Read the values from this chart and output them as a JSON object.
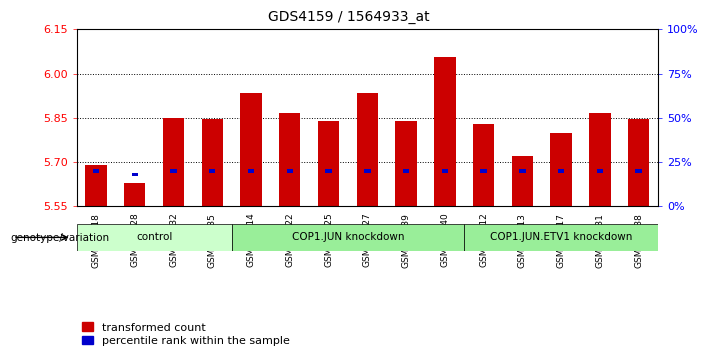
{
  "title": "GDS4159 / 1564933_at",
  "samples": [
    "GSM689418",
    "GSM689428",
    "GSM689432",
    "GSM689435",
    "GSM689414",
    "GSM689422",
    "GSM689425",
    "GSM689427",
    "GSM689439",
    "GSM689440",
    "GSM689412",
    "GSM689413",
    "GSM689417",
    "GSM689431",
    "GSM689438"
  ],
  "transformed_counts": [
    5.69,
    5.63,
    5.85,
    5.845,
    5.935,
    5.865,
    5.84,
    5.935,
    5.84,
    6.055,
    5.83,
    5.72,
    5.8,
    5.865,
    5.845
  ],
  "percentile_ranks_pct": [
    20,
    18,
    20,
    20,
    20,
    20,
    20,
    20,
    20,
    20,
    20,
    20,
    20,
    20,
    20
  ],
  "bar_color": "#cc0000",
  "blue_color": "#0000cc",
  "ylim_left": [
    5.55,
    6.15
  ],
  "ylim_right": [
    0,
    100
  ],
  "yticks_left": [
    5.55,
    5.7,
    5.85,
    6.0,
    6.15
  ],
  "yticks_right": [
    0,
    25,
    50,
    75,
    100
  ],
  "ytick_labels_right": [
    "0%",
    "25%",
    "50%",
    "75%",
    "100%"
  ],
  "hlines": [
    5.7,
    5.85,
    6.0
  ],
  "bar_width": 0.55,
  "legend_red_label": "transformed count",
  "legend_blue_label": "percentile rank within the sample",
  "genotype_label": "genotype/variation",
  "background_color": "#ffffff",
  "base_value": 5.55,
  "group_defs": [
    [
      0,
      3,
      "control",
      "#ccffcc"
    ],
    [
      4,
      9,
      "COP1.JUN knockdown",
      "#99ee99"
    ],
    [
      10,
      14,
      "COP1.JUN.ETV1 knockdown",
      "#99ee99"
    ]
  ]
}
